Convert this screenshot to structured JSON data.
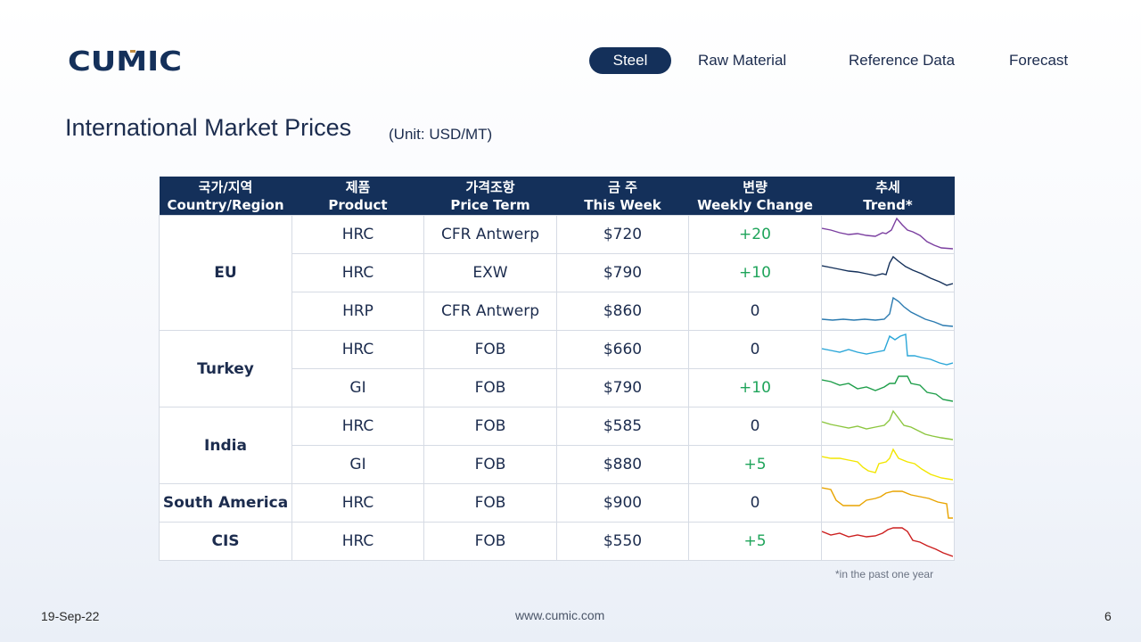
{
  "brand": {
    "name": "CUMIC",
    "logo_color": "#14305a",
    "accent_color": "#c08a3e"
  },
  "nav": {
    "items": [
      {
        "label": "Steel",
        "active": true
      },
      {
        "label": "Raw Material",
        "active": false
      },
      {
        "label": "Reference Data",
        "active": false
      },
      {
        "label": "Forecast",
        "active": false
      }
    ]
  },
  "page": {
    "title": "International Market Prices",
    "unit": "(Unit: USD/MT)"
  },
  "table": {
    "headers": [
      {
        "ko": "국가/지역",
        "en": "Country/Region"
      },
      {
        "ko": "제품",
        "en": "Product"
      },
      {
        "ko": "가격조항",
        "en": "Price Term"
      },
      {
        "ko": "금 주",
        "en": "This Week"
      },
      {
        "ko": "변량",
        "en": "Weekly Change"
      },
      {
        "ko": "추세",
        "en": "Trend*"
      }
    ],
    "regions": [
      "EU",
      "Turkey",
      "India",
      "South America",
      "CIS"
    ],
    "rows": [
      {
        "product": "HRC",
        "term": "CFR Antwerp",
        "price": "$720",
        "change": "+20",
        "trend_color": "#7b3fa0"
      },
      {
        "product": "HRC",
        "term": "EXW",
        "price": "$790",
        "change": "+10",
        "trend_color": "#14305a"
      },
      {
        "product": "HRP",
        "term": "CFR Antwerp",
        "price": "$860",
        "change": "0",
        "trend_color": "#2a7ab0"
      },
      {
        "product": "HRC",
        "term": "FOB",
        "price": "$660",
        "change": "0",
        "trend_color": "#2aa6d8"
      },
      {
        "product": "GI",
        "term": "FOB",
        "price": "$790",
        "change": "+10",
        "trend_color": "#1e9e4a"
      },
      {
        "product": "HRC",
        "term": "FOB",
        "price": "$585",
        "change": "0",
        "trend_color": "#8cc63f"
      },
      {
        "product": "GI",
        "term": "FOB",
        "price": "$880",
        "change": "+5",
        "trend_color": "#f2e600"
      },
      {
        "product": "HRC",
        "term": "FOB",
        "price": "$900",
        "change": "0",
        "trend_color": "#e8a400"
      },
      {
        "product": "HRC",
        "term": "FOB",
        "price": "$550",
        "change": "+5",
        "trend_color": "#cc1f1f"
      }
    ]
  },
  "footnote": "*in the past one year",
  "footer": {
    "date": "19-Sep-22",
    "website": "www.cumic.com",
    "page_number": "6"
  }
}
